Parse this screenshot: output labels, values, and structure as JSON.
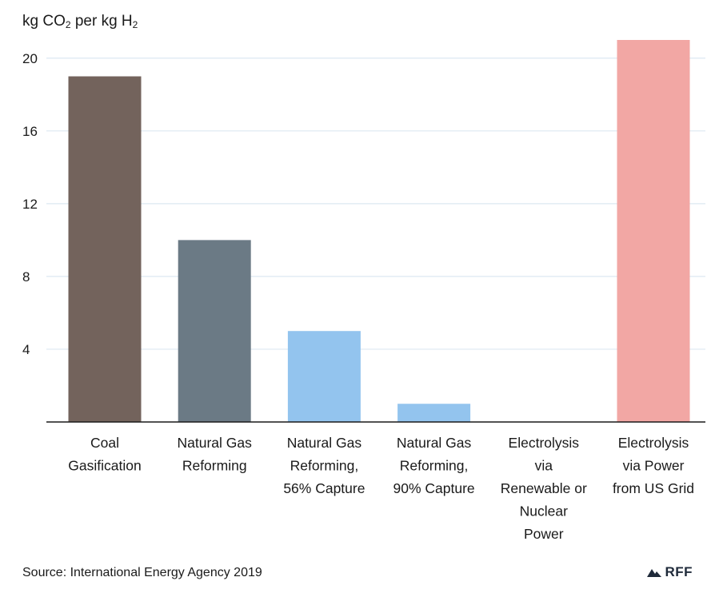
{
  "chart_data": {
    "type": "bar",
    "ylabel_parts": [
      "kg CO",
      "2",
      " per kg H",
      "2"
    ],
    "categories": [
      [
        "Coal",
        "Gasification"
      ],
      [
        "Natural Gas",
        "Reforming"
      ],
      [
        "Natural Gas",
        "Reforming,",
        "56% Capture"
      ],
      [
        "Natural Gas",
        "Reforming,",
        "90% Capture"
      ],
      [
        "Electrolysis",
        "via",
        "Renewable or",
        "Nuclear",
        "Power"
      ],
      [
        "Electrolysis",
        "via Power",
        "from US Grid"
      ]
    ],
    "values": [
      19,
      10,
      5,
      1,
      0,
      21
    ],
    "colors": [
      "#73635c",
      "#6b7a85",
      "#93c4ee",
      "#93c4ee",
      "#93c4ee",
      "#f2a7a4"
    ],
    "yticks": [
      4,
      8,
      12,
      16,
      20
    ],
    "ylim": [
      0,
      21
    ],
    "grid": true,
    "gridColor": "#dce8f2",
    "axisColor": "#1a1a1a"
  },
  "source": "Source: International Energy Agency 2019",
  "logo": {
    "text": "RFF",
    "icon": "mountain-icon"
  }
}
